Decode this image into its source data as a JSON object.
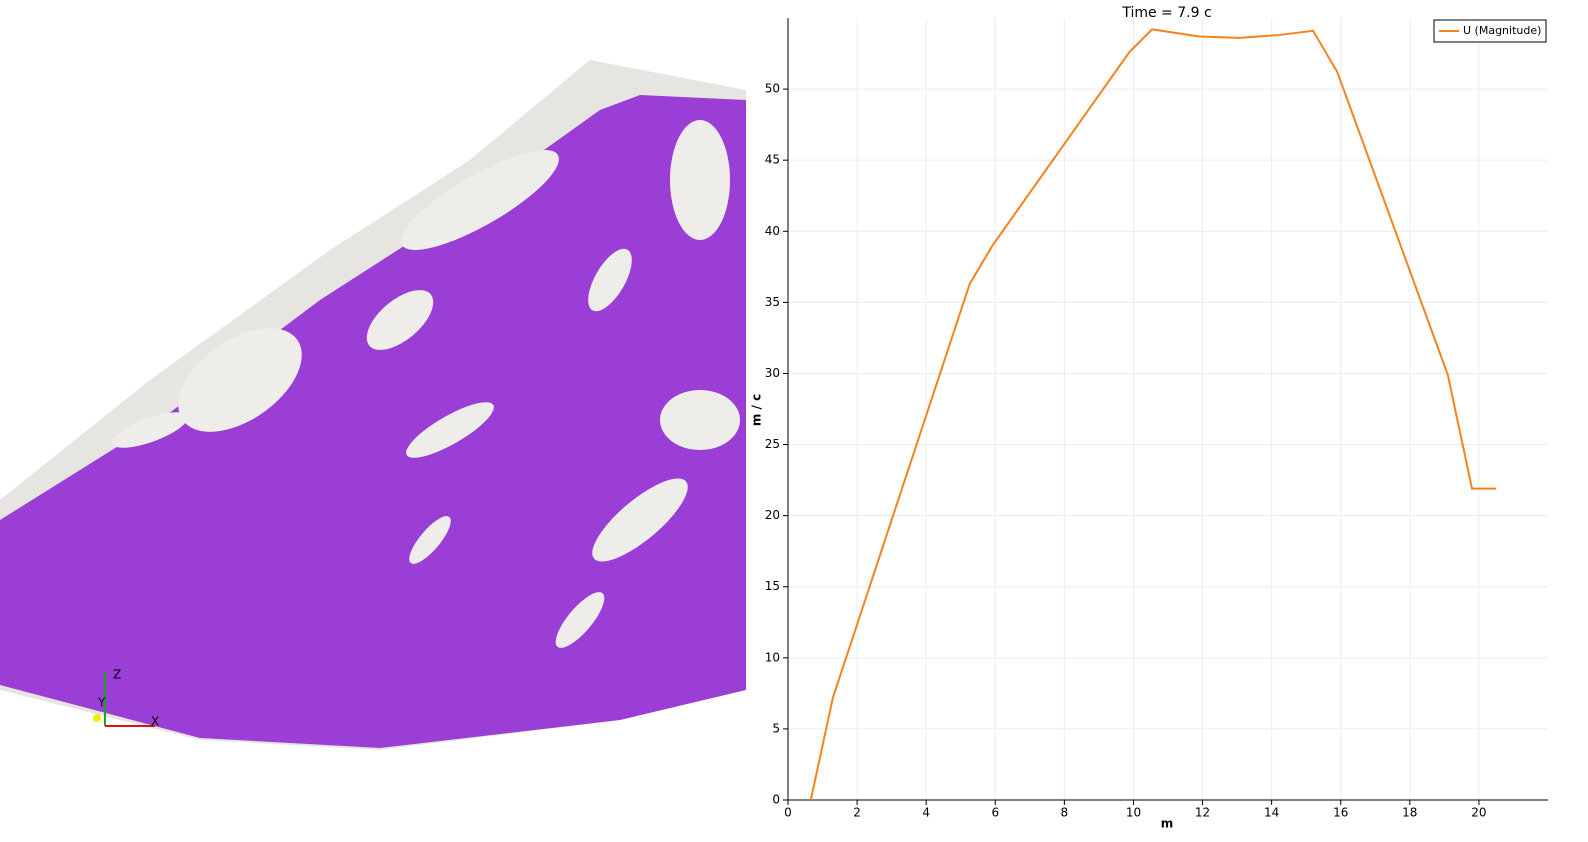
{
  "view_3d": {
    "axes": [
      "Z",
      "Y",
      "X"
    ]
  },
  "chart_data": {
    "type": "line",
    "title": "Time = 7.9 c",
    "x_label": "m",
    "y_label": "m / c",
    "x": [
      0.66,
      1.3,
      5.26,
      5.92,
      9.88,
      10.54,
      11.9,
      13.05,
      14.2,
      15.2,
      15.9,
      19.1,
      19.8,
      20.5
    ],
    "series": [
      {
        "name": "U (Magnitude)",
        "color": "#f5821f",
        "values": [
          0,
          7.2,
          36.3,
          39,
          52.6,
          54.2,
          53.7,
          53.6,
          53.8,
          54.1,
          51.2,
          29.9,
          21.9,
          21.9
        ]
      }
    ],
    "xlim": [
      0,
      22
    ],
    "ylim": [
      0,
      55
    ],
    "xticks": [
      0,
      2,
      4,
      6,
      8,
      10,
      12,
      14,
      16,
      18,
      20
    ],
    "yticks": [
      0,
      5,
      10,
      15,
      20,
      25,
      30,
      35,
      40,
      45,
      50
    ],
    "grid": true,
    "legend": "top-right"
  }
}
